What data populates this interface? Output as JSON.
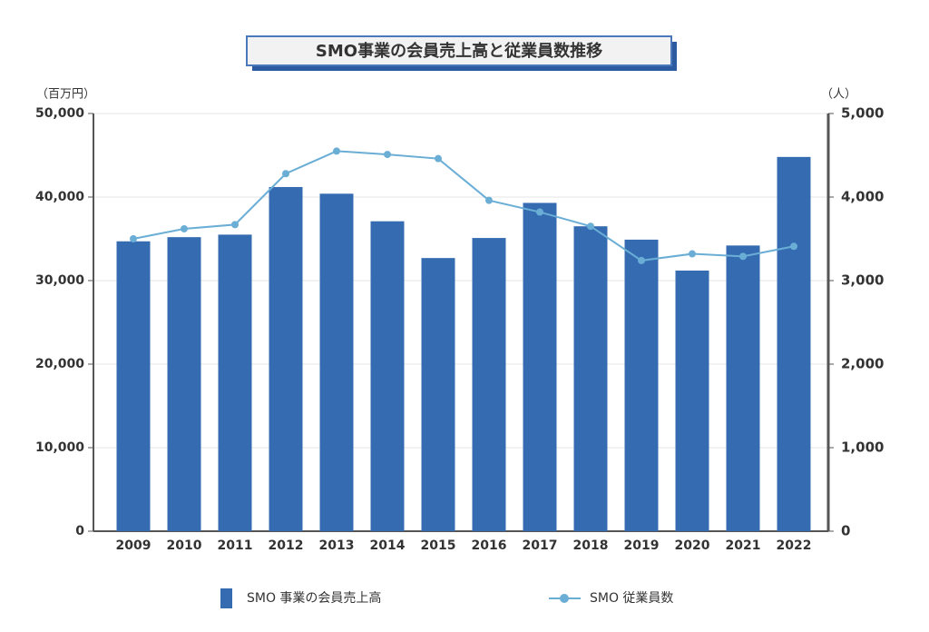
{
  "chart_data": {
    "type": "bar_line",
    "title": "SMO事業の会員売上高と従業員数推移",
    "y_label": "（百万円）",
    "y2_label": "（人）",
    "categories": [
      "2009",
      "2010",
      "2011",
      "2012",
      "2013",
      "2014",
      "2015",
      "2016",
      "2017",
      "2018",
      "2019",
      "2020",
      "2021",
      "2022"
    ],
    "series": [
      {
        "name": "SMO 事業の会員売上高",
        "type": "bar",
        "color": "#356cb1",
        "values": [
          34700,
          35200,
          35500,
          41200,
          40400,
          37100,
          32700,
          35100,
          39300,
          36500,
          34900,
          31200,
          34200,
          44800
        ]
      },
      {
        "name": "SMO 従業員数",
        "type": "line",
        "axis": "y2",
        "color": "#6aaed6",
        "values": [
          3500,
          3620,
          3670,
          4280,
          4550,
          4510,
          4460,
          3960,
          3820,
          3650,
          3240,
          3320,
          3290,
          3410
        ]
      }
    ],
    "ylim": [
      0,
      50000
    ],
    "yticks": [
      0,
      {
        "value": 10000,
        "label": "10,000"
      },
      {
        "value": 20000,
        "label": "20,000"
      },
      {
        "value": 30000,
        "label": "30,000"
      },
      {
        "value": 40000,
        "label": "40,000"
      },
      {
        "value": 50000,
        "label": "50,000"
      }
    ],
    "y2lim": [
      0,
      5000
    ],
    "y2ticks": [
      0,
      {
        "value": 1000,
        "label": "1,000"
      },
      {
        "value": 2000,
        "label": "2,000"
      },
      {
        "value": 3000,
        "label": "3,000"
      },
      {
        "value": 4000,
        "label": "4,000"
      },
      {
        "value": 5000,
        "label": "5,000"
      }
    ],
    "grid": true
  }
}
